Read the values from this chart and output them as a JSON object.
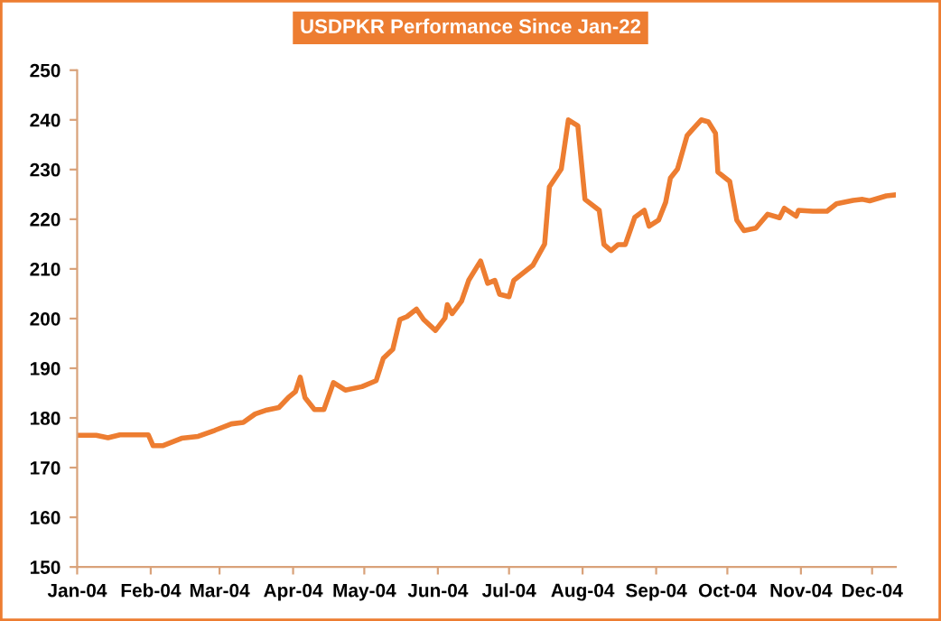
{
  "chart_data": {
    "type": "line",
    "title": "USDPKR Performance Since Jan-22",
    "x": [
      "2004-01-01",
      "2004-01-09",
      "2004-01-14",
      "2004-01-19",
      "2004-01-24",
      "2004-01-31",
      "2004-02-02",
      "2004-02-06",
      "2004-02-14",
      "2004-02-21",
      "2004-02-28",
      "2004-03-06",
      "2004-03-11",
      "2004-03-16",
      "2004-03-21",
      "2004-03-26",
      "2004-03-30",
      "2004-04-02",
      "2004-04-04",
      "2004-04-06",
      "2004-04-10",
      "2004-04-14",
      "2004-04-18",
      "2004-04-23",
      "2004-04-30",
      "2004-05-06",
      "2004-05-09",
      "2004-05-13",
      "2004-05-16",
      "2004-05-19",
      "2004-05-23",
      "2004-05-26",
      "2004-05-31",
      "2004-06-04",
      "2004-06-05",
      "2004-06-07",
      "2004-06-11",
      "2004-06-14",
      "2004-06-19",
      "2004-06-22",
      "2004-06-25",
      "2004-06-27",
      "2004-07-01",
      "2004-07-03",
      "2004-07-11",
      "2004-07-16",
      "2004-07-18",
      "2004-07-23",
      "2004-07-26",
      "2004-07-30",
      "2004-08-02",
      "2004-08-08",
      "2004-08-10",
      "2004-08-13",
      "2004-08-16",
      "2004-08-19",
      "2004-08-23",
      "2004-08-27",
      "2004-08-29",
      "2004-09-02",
      "2004-09-05",
      "2004-09-07",
      "2004-09-10",
      "2004-09-14",
      "2004-09-16",
      "2004-09-20",
      "2004-09-23",
      "2004-09-26",
      "2004-09-27",
      "2004-10-02",
      "2004-10-05",
      "2004-10-08",
      "2004-10-13",
      "2004-10-18",
      "2004-10-23",
      "2004-10-25",
      "2004-10-30",
      "2004-10-31",
      "2004-11-06",
      "2004-11-12",
      "2004-11-16",
      "2004-11-23",
      "2004-11-27",
      "2004-11-30",
      "2004-12-07",
      "2004-12-11"
    ],
    "series": [
      {
        "color": "#ed7d31",
        "values": [
          176.5,
          176.5,
          176.0,
          176.6,
          176.6,
          176.6,
          174.4,
          174.4,
          175.9,
          176.3,
          177.5,
          178.8,
          179.1,
          180.8,
          181.6,
          182.1,
          184.1,
          185.3,
          188.2,
          184.1,
          181.7,
          181.7,
          187.1,
          185.6,
          186.3,
          187.5,
          192.0,
          193.8,
          199.8,
          200.4,
          201.9,
          199.8,
          197.6,
          200.1,
          202.8,
          201.0,
          203.5,
          207.7,
          211.6,
          207.1,
          207.7,
          204.9,
          204.4,
          207.7,
          210.7,
          215.0,
          226.5,
          230.1,
          240.0,
          238.8,
          224.0,
          221.8,
          214.9,
          213.7,
          214.9,
          214.9,
          220.4,
          221.8,
          218.6,
          219.8,
          223.4,
          228.3,
          230.1,
          236.8,
          237.9,
          240.0,
          239.6,
          237.3,
          229.5,
          227.6,
          219.8,
          217.7,
          218.2,
          221.0,
          220.3,
          222.2,
          220.6,
          221.8,
          221.6,
          221.6,
          223.1,
          223.8,
          224.0,
          223.7,
          224.7,
          224.9
        ]
      }
    ],
    "xlim": [
      "2004-01-01",
      "2004-12-11"
    ],
    "xticks": [
      {
        "value": "2004-01-01",
        "label": "Jan-04"
      },
      {
        "value": "2004-02-01",
        "label": "Feb-04"
      },
      {
        "value": "2004-03-01",
        "label": "Mar-04"
      },
      {
        "value": "2004-04-01",
        "label": "Apr-04"
      },
      {
        "value": "2004-05-01",
        "label": "May-04"
      },
      {
        "value": "2004-06-01",
        "label": "Jun-04"
      },
      {
        "value": "2004-07-01",
        "label": "Jul-04"
      },
      {
        "value": "2004-08-01",
        "label": "Aug-04"
      },
      {
        "value": "2004-09-01",
        "label": "Sep-04"
      },
      {
        "value": "2004-10-01",
        "label": "Oct-04"
      },
      {
        "value": "2004-11-01",
        "label": "Nov-04"
      },
      {
        "value": "2004-12-01",
        "label": "Dec-04"
      }
    ],
    "ylim": [
      150,
      250
    ],
    "yticks": [
      150,
      160,
      170,
      180,
      190,
      200,
      210,
      220,
      230,
      240,
      250
    ],
    "grid": false,
    "legend": false,
    "marker": "none",
    "line_style": "solid"
  }
}
